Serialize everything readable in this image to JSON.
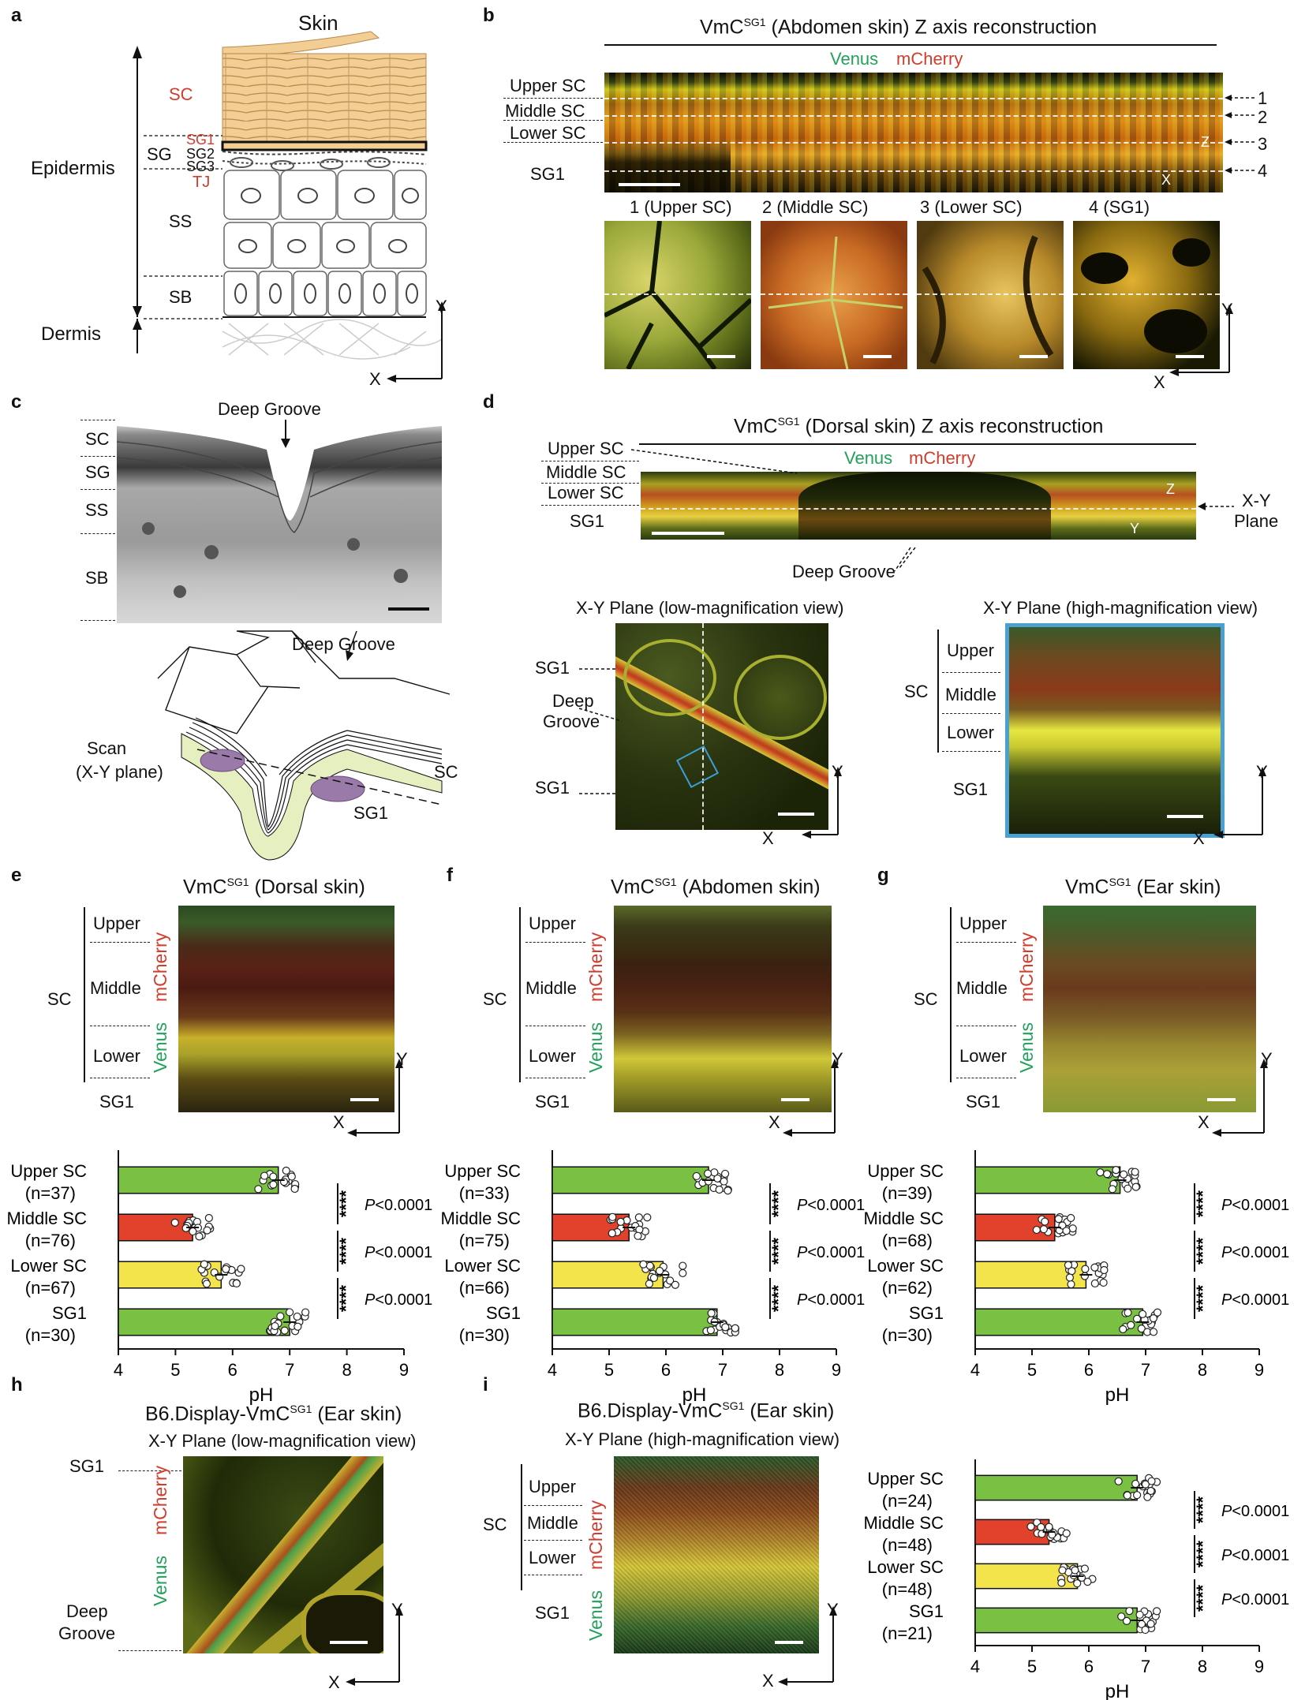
{
  "panels": {
    "a": {
      "label": "a",
      "title": "Skin",
      "epidermis": "Epidermis",
      "dermis": "Dermis",
      "layers": {
        "sc": "SC",
        "sg": "SG",
        "ss": "SS",
        "sb": "SB",
        "sg1": "SG1",
        "sg2": "SG2",
        "sg3": "SG3",
        "tj": "TJ"
      },
      "axes": {
        "y": "Y",
        "x": "X"
      }
    },
    "b": {
      "label": "b",
      "title_pre": "VmC",
      "title_sup": "SG1",
      "title_post": " (Abdomen skin) Z axis reconstruction",
      "venus": "Venus",
      "mcherry": "mCherry",
      "layers": [
        "Upper SC",
        "Middle SC",
        "Lower SC",
        "SG1"
      ],
      "marks": [
        "1",
        "2",
        "3",
        "4"
      ],
      "subpanels": [
        "1 (Upper SC)",
        "2 (Middle SC)",
        "3 (Lower SC)",
        "4 (SG1)"
      ],
      "axes": {
        "z": "Z",
        "x": "X",
        "y": "Y"
      }
    },
    "c": {
      "label": "c",
      "deep_groove": "Deep Groove",
      "layers": [
        "SC",
        "SG",
        "SS",
        "SB"
      ],
      "deep_groove2": "Deep Groove",
      "scan": "Scan",
      "scan_plane": "(X-Y plane)",
      "sc": "SC",
      "sg1": "SG1"
    },
    "d": {
      "label": "d",
      "title_pre": "VmC",
      "title_sup": "SG1",
      "title_post": " (Dorsal skin) Z axis reconstruction",
      "venus": "Venus",
      "mcherry": "mCherry",
      "layers": [
        "Upper SC",
        "Middle SC",
        "Lower SC",
        "SG1"
      ],
      "xy_plane": "X-Y",
      "xy_plane2": "Plane",
      "deep_groove": "Deep Groove",
      "low_title": "X-Y Plane  (low-magnification view)",
      "high_title": "X-Y Plane  (high-magnification view)",
      "sg1": "SG1",
      "deep": "Deep",
      "groove": "Groove",
      "sc": "SC",
      "upper": "Upper",
      "middle": "Middle",
      "lower": "Lower",
      "axes": {
        "z": "Z",
        "y": "Y",
        "x": "X"
      }
    },
    "e": {
      "label": "e",
      "title_pre": "VmC",
      "title_sup": "SG1",
      "title_post": " (Dorsal skin)"
    },
    "f": {
      "label": "f",
      "title_pre": "VmC",
      "title_sup": "SG1",
      "title_post": " (Abdomen skin)"
    },
    "g": {
      "label": "g",
      "title_pre": "VmC",
      "title_sup": "SG1",
      "title_post": " (Ear skin)"
    },
    "h": {
      "label": "h",
      "title_pre": "B6.Display-VmC",
      "title_sup": "SG1",
      "title_post": " (Ear skin)",
      "subtitle": "X-Y Plane  (low-magnification view)",
      "sg1": "SG1",
      "deep": "Deep",
      "groove": "Groove",
      "venus": "Venus",
      "mcherry": "mCherry",
      "axes": {
        "y": "Y",
        "x": "X"
      }
    },
    "i": {
      "label": "i",
      "title_pre": "B6.Display-VmC",
      "title_sup": "SG1",
      "title_post": " (Ear skin)",
      "subtitle": "X-Y Plane  (high-magnification view)"
    }
  },
  "common": {
    "sc": "SC",
    "upper": "Upper",
    "middle": "Middle",
    "lower": "Lower",
    "sg1": "SG1",
    "venus": "Venus",
    "mcherry": "mCherry",
    "x": "X",
    "y": "Y",
    "stars": "****"
  },
  "chart_data": [
    {
      "panel": "e",
      "type": "bar",
      "orientation": "horizontal",
      "xlabel": "pH",
      "xlim": [
        4,
        9
      ],
      "ticks": [
        4,
        5,
        6,
        7,
        8,
        9
      ],
      "categories": [
        "Upper SC",
        "Middle SC",
        "Lower SC",
        "SG1"
      ],
      "n": [
        "(n=37)",
        "(n=76)",
        "(n=67)",
        "(n=30)"
      ],
      "values": [
        6.8,
        5.3,
        5.8,
        7.0
      ],
      "colors": [
        "#7ac143",
        "#e2422b",
        "#f2e44a",
        "#7ac143"
      ],
      "significance": [
        {
          "stars": "****",
          "p": "P<0.0001"
        },
        {
          "stars": "****",
          "p": "P<0.0001"
        },
        {
          "stars": "****",
          "p": "P<0.0001"
        }
      ]
    },
    {
      "panel": "f",
      "type": "bar",
      "orientation": "horizontal",
      "xlabel": "pH",
      "xlim": [
        4,
        9
      ],
      "ticks": [
        4,
        5,
        6,
        7,
        8,
        9
      ],
      "categories": [
        "Upper SC",
        "Middle SC",
        "Lower SC",
        "SG1"
      ],
      "n": [
        "(n=33)",
        "(n=75)",
        "(n=66)",
        "(n=30)"
      ],
      "values": [
        6.75,
        5.35,
        5.95,
        6.9
      ],
      "colors": [
        "#7ac143",
        "#e2422b",
        "#f2e44a",
        "#7ac143"
      ],
      "significance": [
        {
          "stars": "****",
          "p": "P<0.0001"
        },
        {
          "stars": "****",
          "p": "P<0.0001"
        },
        {
          "stars": "****",
          "p": "P<0.0001"
        }
      ]
    },
    {
      "panel": "g",
      "type": "bar",
      "orientation": "horizontal",
      "xlabel": "pH",
      "xlim": [
        4,
        9
      ],
      "ticks": [
        4,
        5,
        6,
        7,
        8,
        9
      ],
      "categories": [
        "Upper SC",
        "Middle SC",
        "Lower SC",
        "SG1"
      ],
      "n": [
        "(n=39)",
        "(n=68)",
        "(n=62)",
        "(n=30)"
      ],
      "values": [
        6.55,
        5.4,
        5.95,
        6.95
      ],
      "colors": [
        "#7ac143",
        "#e2422b",
        "#f2e44a",
        "#7ac143"
      ],
      "significance": [
        {
          "stars": "****",
          "p": "P<0.0001"
        },
        {
          "stars": "****",
          "p": "P<0.0001"
        },
        {
          "stars": "****",
          "p": "P<0.0001"
        }
      ]
    },
    {
      "panel": "i",
      "type": "bar",
      "orientation": "horizontal",
      "xlabel": "pH",
      "xlim": [
        4,
        9
      ],
      "ticks": [
        4,
        5,
        6,
        7,
        8,
        9
      ],
      "categories": [
        "Upper SC",
        "Middle SC",
        "Lower SC",
        "SG1"
      ],
      "n": [
        "(n=24)",
        "(n=48)",
        "(n=48)",
        "(n=21)"
      ],
      "values": [
        6.85,
        5.3,
        5.8,
        6.85
      ],
      "colors": [
        "#7ac143",
        "#e2422b",
        "#f2e44a",
        "#7ac143"
      ],
      "significance": [
        {
          "stars": "****",
          "p": "P<0.0001"
        },
        {
          "stars": "****",
          "p": "P<0.0001"
        },
        {
          "stars": "****",
          "p": "P<0.0001"
        }
      ]
    }
  ]
}
